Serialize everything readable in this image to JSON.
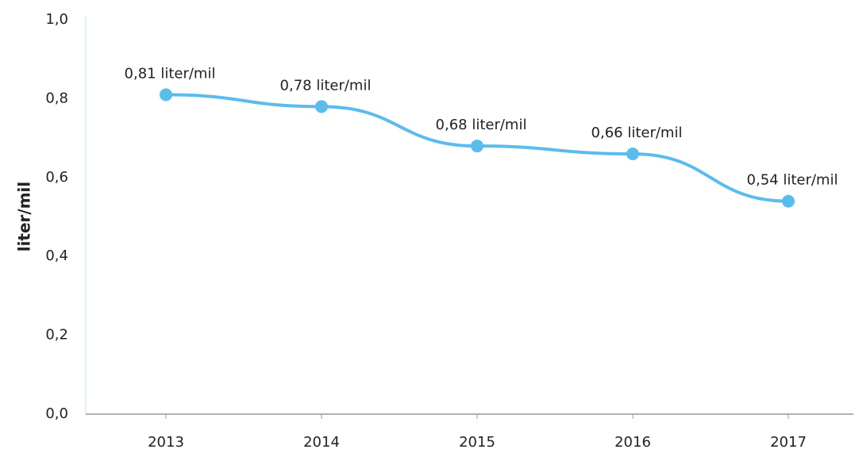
{
  "chart_data": {
    "type": "line",
    "y_label": "liter/mil",
    "categories": [
      "2013",
      "2014",
      "2015",
      "2016",
      "2017"
    ],
    "series": [
      {
        "name": "liter/mil",
        "color": "#5bbcec",
        "values": [
          0.81,
          0.78,
          0.68,
          0.66,
          0.54
        ],
        "value_labels": [
          "0,81 liter/mil",
          "0,78 liter/mil",
          "0,68 liter/mil",
          "0,66 liter/mil",
          "0,54 liter/mil"
        ]
      }
    ],
    "ylim": [
      0,
      1.0
    ],
    "yticks": [
      {
        "value": 0,
        "label": "0,0"
      },
      {
        "value": 0.2,
        "label": "0,2"
      },
      {
        "value": 0.4,
        "label": "0,4"
      },
      {
        "value": 0.6,
        "label": "0,6"
      },
      {
        "value": 0.8,
        "label": "0,8"
      },
      {
        "value": 1.0,
        "label": "1,0"
      }
    ],
    "grid": false
  }
}
